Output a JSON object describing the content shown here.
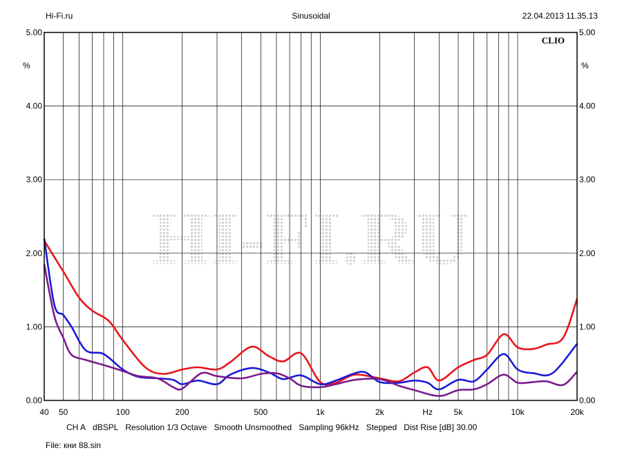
{
  "header": {
    "left": "Hi-Fi.ru",
    "center": "Sinusoidal",
    "right": "22.04.2013 11.35.13"
  },
  "brand": "CLIO",
  "watermark": "HI-FI.RU",
  "footer": {
    "settings": [
      "CH A",
      "dBSPL",
      "Resolution 1/3 Octave",
      "Smooth Unsmoothed",
      "Sampling 96kHz",
      "Stepped",
      "Dist Rise [dB] 30.00"
    ],
    "file": "File: кни 88.sin"
  },
  "colors": {
    "background": "#ffffff",
    "grid": "#000000",
    "series": [
      "#e8141a",
      "#1a1ad6",
      "#7a1a8c"
    ]
  },
  "chart_data": {
    "type": "line",
    "title": "Sinusoidal",
    "xscale": "log",
    "xlim": [
      40,
      20000
    ],
    "ylim": [
      0,
      5
    ],
    "grid": true,
    "y_unit_label": "%",
    "y_ticks": [
      "0.00",
      "1.00",
      "2.00",
      "3.00",
      "4.00",
      "5.00"
    ],
    "x_ticks": [
      {
        "value": 40,
        "label": "40"
      },
      {
        "value": 50,
        "label": "50"
      },
      {
        "value": 100,
        "label": "100"
      },
      {
        "value": 200,
        "label": "200"
      },
      {
        "value": 500,
        "label": "500"
      },
      {
        "value": 1000,
        "label": "1k"
      },
      {
        "value": 2000,
        "label": "2k"
      },
      {
        "value": 3500,
        "label": "Hz"
      },
      {
        "value": 5000,
        "label": "5k"
      },
      {
        "value": 10000,
        "label": "10k"
      },
      {
        "value": 20000,
        "label": "20k"
      }
    ],
    "series": [
      {
        "color": "#e8141a",
        "x": [
          40,
          50,
          60,
          70,
          85,
          100,
          130,
          160,
          200,
          240,
          300,
          350,
          450,
          550,
          650,
          800,
          1000,
          1200,
          1500,
          2000,
          2500,
          3000,
          3500,
          4000,
          5000,
          6000,
          7000,
          8500,
          10000,
          12000,
          14000,
          17000,
          20000
        ],
        "y": [
          2.17,
          1.75,
          1.4,
          1.22,
          1.08,
          0.82,
          0.45,
          0.36,
          0.42,
          0.45,
          0.42,
          0.52,
          0.73,
          0.6,
          0.53,
          0.64,
          0.25,
          0.24,
          0.35,
          0.3,
          0.26,
          0.38,
          0.45,
          0.27,
          0.45,
          0.55,
          0.62,
          0.9,
          0.72,
          0.7,
          0.76,
          0.85,
          1.38
        ]
      },
      {
        "color": "#1a1ad6",
        "x": [
          40,
          45,
          50,
          55,
          65,
          80,
          100,
          120,
          150,
          180,
          200,
          240,
          300,
          350,
          450,
          550,
          650,
          800,
          1000,
          1200,
          1500,
          1700,
          2000,
          2500,
          3000,
          3500,
          4000,
          5000,
          6000,
          7000,
          8500,
          10000,
          12000,
          15000,
          20000
        ],
        "y": [
          2.2,
          1.3,
          1.16,
          1.0,
          0.68,
          0.63,
          0.42,
          0.32,
          0.3,
          0.28,
          0.22,
          0.27,
          0.22,
          0.35,
          0.44,
          0.38,
          0.29,
          0.34,
          0.22,
          0.27,
          0.37,
          0.38,
          0.25,
          0.24,
          0.27,
          0.24,
          0.15,
          0.28,
          0.26,
          0.42,
          0.63,
          0.42,
          0.37,
          0.37,
          0.77
        ]
      },
      {
        "color": "#7a1a8c",
        "x": [
          40,
          45,
          50,
          55,
          65,
          80,
          100,
          120,
          150,
          180,
          200,
          250,
          300,
          400,
          500,
          600,
          700,
          800,
          1000,
          1200,
          1500,
          2000,
          2500,
          3000,
          4000,
          5000,
          6000,
          7000,
          8500,
          10000,
          12000,
          14000,
          17000,
          20000
        ],
        "y": [
          1.85,
          1.15,
          0.85,
          0.62,
          0.55,
          0.48,
          0.4,
          0.33,
          0.3,
          0.18,
          0.16,
          0.37,
          0.33,
          0.3,
          0.36,
          0.37,
          0.3,
          0.2,
          0.18,
          0.22,
          0.28,
          0.29,
          0.2,
          0.14,
          0.06,
          0.14,
          0.15,
          0.22,
          0.35,
          0.24,
          0.25,
          0.26,
          0.21,
          0.39
        ]
      }
    ]
  }
}
